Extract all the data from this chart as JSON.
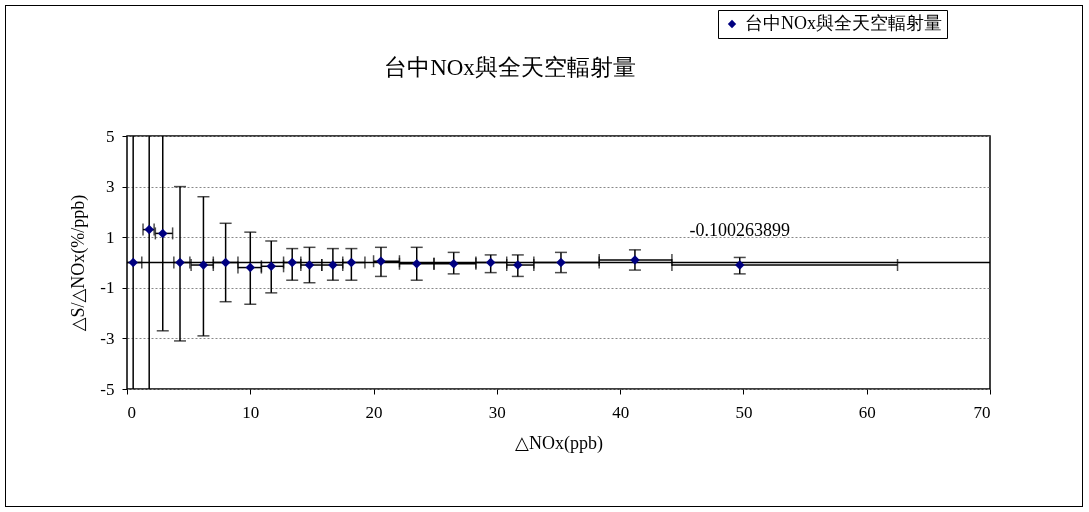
{
  "chart_data": {
    "type": "scatter",
    "title": "台中NOx與全天空輻射量",
    "xlabel": "△NOx(ppb)",
    "ylabel": "△S/△NOx(%/ppb)",
    "x": [
      0.5,
      1.8,
      2.9,
      4.3,
      6.2,
      8.0,
      10.0,
      11.7,
      13.4,
      14.8,
      16.7,
      18.2,
      20.6,
      23.5,
      26.5,
      29.5,
      31.7,
      35.2,
      41.2,
      49.7
    ],
    "series": [
      {
        "name": "台中NOx與全天空輻射量",
        "color": "#000080",
        "values": [
          0,
          1.3,
          1.15,
          0,
          -0.1,
          0,
          -0.2,
          -0.15,
          0,
          -0.1,
          -0.1,
          0,
          0.05,
          -0.05,
          -0.05,
          0,
          -0.1,
          0,
          0.1,
          -0.1
        ],
        "errors": [
          [
            -5,
            5
          ],
          [
            -5,
            5
          ],
          [
            -2.7,
            5
          ],
          [
            -3.1,
            3
          ],
          [
            -2.9,
            2.6
          ],
          [
            -1.55,
            1.55
          ],
          [
            -1.65,
            1.2
          ],
          [
            -1.2,
            0.85
          ],
          [
            -0.7,
            0.55
          ],
          [
            -0.8,
            0.6
          ],
          [
            -0.7,
            0.55
          ],
          [
            -0.7,
            0.55
          ],
          [
            -0.55,
            0.6
          ],
          [
            -0.7,
            0.6
          ],
          [
            -0.45,
            0.4
          ],
          [
            -0.4,
            0.3
          ],
          [
            -0.55,
            0.3
          ],
          [
            -0.4,
            0.4
          ],
          [
            -0.3,
            0.5
          ],
          [
            -0.45,
            0.2
          ]
        ],
        "xerrors": [
          [
            0,
            1.2
          ],
          [
            1.3,
            2.2
          ],
          [
            2.3,
            3.7
          ],
          [
            3.8,
            5.1
          ],
          [
            5.2,
            7.0
          ],
          [
            7.0,
            9.0
          ],
          [
            9.0,
            10.9
          ],
          [
            10.9,
            12.7
          ],
          [
            12.7,
            14.1
          ],
          [
            14.1,
            15.8
          ],
          [
            15.8,
            17.5
          ],
          [
            17.5,
            19.3
          ],
          [
            20.0,
            22.1
          ],
          [
            22.1,
            24.9
          ],
          [
            24.9,
            28.3
          ],
          [
            28.3,
            30.8
          ],
          [
            30.8,
            33.0
          ],
          [
            33.0,
            38.3
          ],
          [
            38.3,
            44.2
          ],
          [
            44.2,
            62.5
          ]
        ]
      }
    ],
    "xlim": [
      0,
      70
    ],
    "xticks": [
      0,
      10,
      20,
      30,
      40,
      50,
      60,
      70
    ],
    "ylim": [
      -5,
      5
    ],
    "yticks": [
      -5,
      -3,
      -1,
      1,
      3,
      5
    ],
    "ref_lines": [
      {
        "axis": "y",
        "value": 0,
        "color": "#000000"
      }
    ],
    "annotations": [
      {
        "text": "-0.100263899",
        "x": 49.7,
        "y": -0.1
      }
    ],
    "grid": "y",
    "marker": "diamond",
    "legend": "top right"
  }
}
